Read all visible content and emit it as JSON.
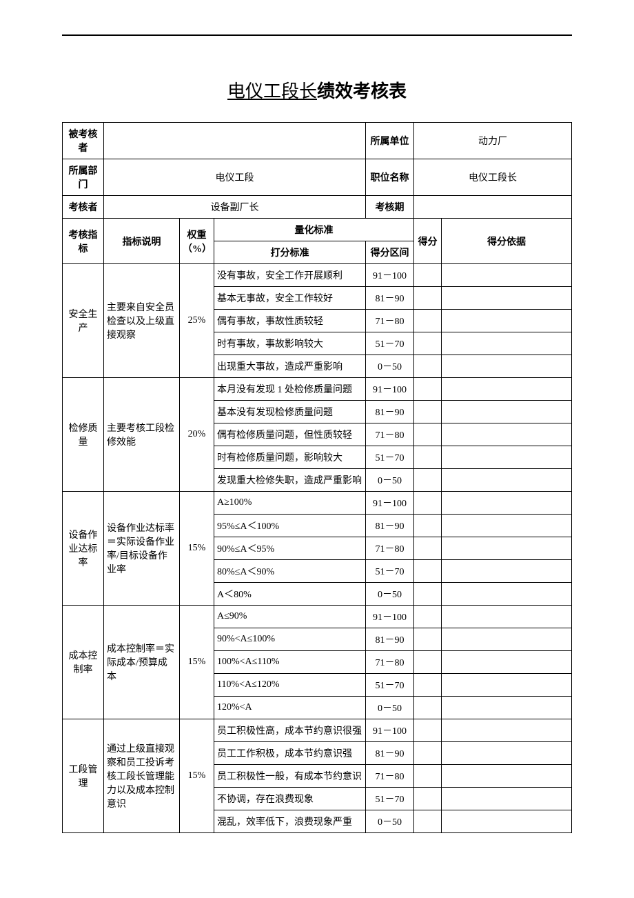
{
  "title_underline": "电仪工段长",
  "title_bold": "绩效考核表",
  "header": {
    "assessee_label": "被考核者",
    "assessee_value": "",
    "unit_label": "所属单位",
    "unit_value": "动力厂",
    "dept_label": "所属部门",
    "dept_value": "电仪工段",
    "position_label": "职位名称",
    "position_value": "电仪工段长",
    "assessor_label": "考核者",
    "assessor_value": "设备副厂长",
    "period_label": "考核期",
    "period_value": ""
  },
  "cols": {
    "indicator": "考核指标",
    "description": "指标说明",
    "weight": "权重（%）",
    "quant_std": "量化标准",
    "scoring_std": "打分标准",
    "range": "得分区间",
    "score": "得分",
    "basis": "得分依据"
  },
  "rows": [
    {
      "indicator": "安全生产",
      "description": "主要来自安全员检查以及上级直接观察",
      "weight": "25%",
      "criteria": [
        {
          "text": "没有事故，安全工作开展顺利",
          "range": "91－100"
        },
        {
          "text": "基本无事故，安全工作较好",
          "range": "81－90"
        },
        {
          "text": "偶有事故，事故性质较轻",
          "range": "71－80"
        },
        {
          "text": "时有事故，事故影响较大",
          "range": "51－70"
        },
        {
          "text": "出现重大事故，造成严重影响",
          "range": "0－50"
        }
      ]
    },
    {
      "indicator": "检修质量",
      "description": "主要考核工段检修效能",
      "weight": "20%",
      "criteria": [
        {
          "text": "本月没有发现 1 处检修质量问题",
          "range": "91－100"
        },
        {
          "text": "基本没有发现检修质量问题",
          "range": "81－90"
        },
        {
          "text": "偶有检修质量问题，但性质较轻",
          "range": "71－80"
        },
        {
          "text": "时有检修质量问题，影响较大",
          "range": "51－70"
        },
        {
          "text": "发现重大检修失职，造成严重影响",
          "range": "0－50"
        }
      ]
    },
    {
      "indicator": "设备作业达标率",
      "description": "设备作业达标率＝实际设备作业率/目标设备作业率",
      "weight": "15%",
      "criteria": [
        {
          "text": "A≥100%",
          "range": "91－100"
        },
        {
          "text": "95%≤A＜100%",
          "range": "81－90"
        },
        {
          "text": "90%≤A＜95%",
          "range": "71－80"
        },
        {
          "text": "80%≤A＜90%",
          "range": "51－70"
        },
        {
          "text": "A＜80%",
          "range": "0－50"
        }
      ]
    },
    {
      "indicator": "成本控制率",
      "description": "成本控制率＝实际成本/预算成本",
      "weight": "15%",
      "criteria": [
        {
          "text": "A≤90%",
          "range": "91－100"
        },
        {
          "text": "90%<A≤100%",
          "range": "81－90"
        },
        {
          "text": "100%<A≤110%",
          "range": "71－80"
        },
        {
          "text": "110%<A≤120%",
          "range": "51－70"
        },
        {
          "text": "120%<A",
          "range": "0－50"
        }
      ]
    },
    {
      "indicator": "工段管理",
      "description": "通过上级直接观察和员工投诉考核工段长管理能力以及成本控制意识",
      "weight": "15%",
      "criteria": [
        {
          "text": "员工积极性高，成本节约意识很强",
          "range": "91－100"
        },
        {
          "text": "员工工作积极，成本节约意识强",
          "range": "81－90"
        },
        {
          "text": "员工积极性一般，有成本节约意识",
          "range": "71－80"
        },
        {
          "text": "不协调，存在浪费现象",
          "range": "51－70"
        },
        {
          "text": "混乱，效率低下，浪费现象严重",
          "range": "0－50"
        }
      ]
    }
  ]
}
